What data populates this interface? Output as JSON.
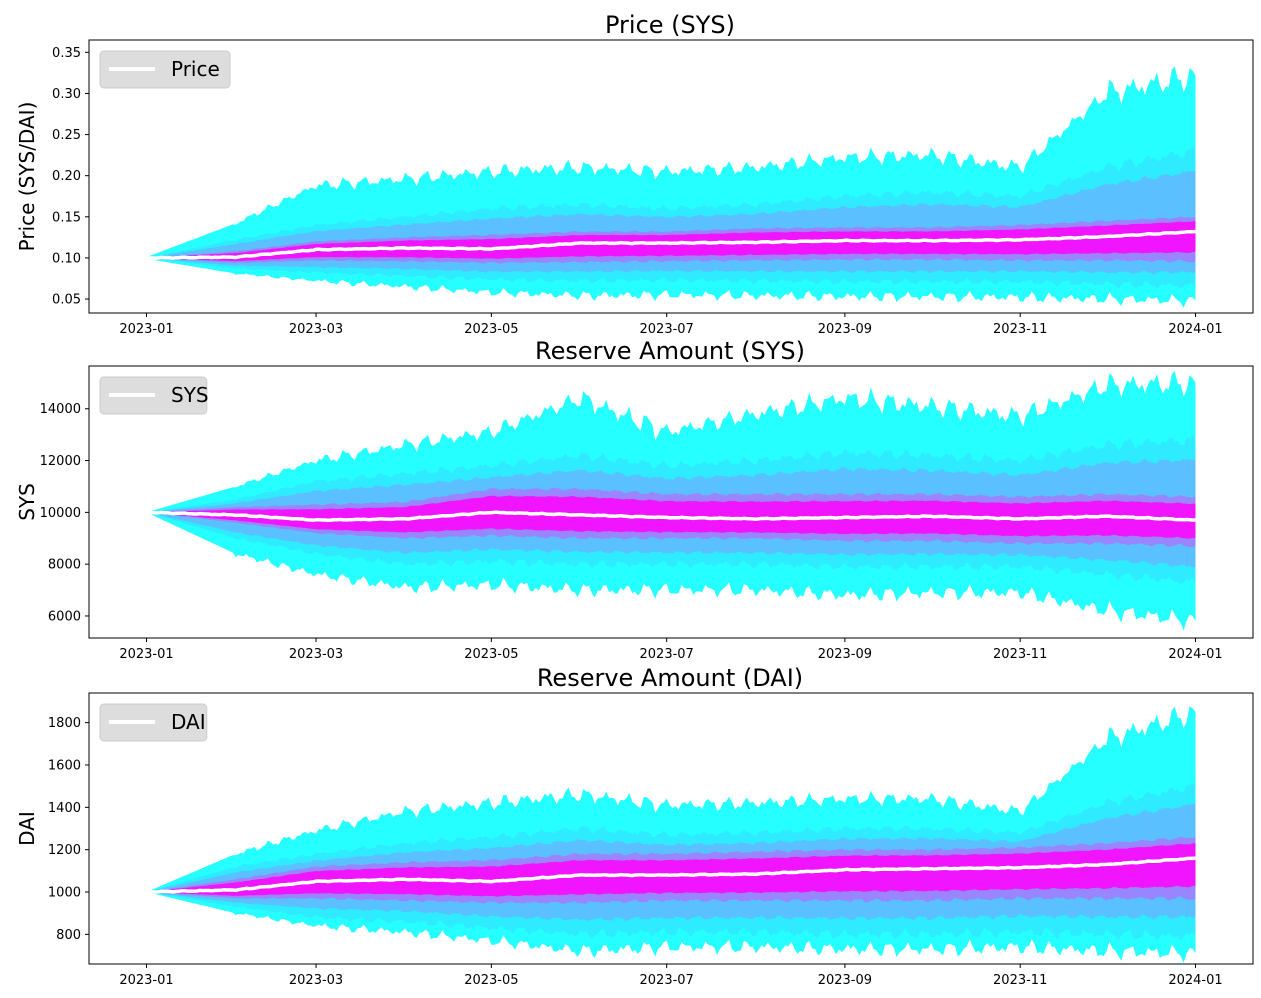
{
  "colors": {
    "outer_band": "#00ffff",
    "inner_band": "#ff00ff",
    "median_line": "#ffffff",
    "legend_bg": "#d9d9d9"
  },
  "chart_data": [
    {
      "type": "area",
      "title": "Price (SYS)",
      "xlabel": "",
      "ylabel": "Price (SYS/DAI)",
      "legend": {
        "labels": [
          "Price"
        ],
        "placement": "top-left"
      },
      "x_ticks": [
        "2023-01",
        "2023-03",
        "2023-05",
        "2023-07",
        "2023-09",
        "2023-11",
        "2024-01"
      ],
      "y_ticks": [
        "0.05",
        "0.10",
        "0.15",
        "0.20",
        "0.25",
        "0.30",
        "0.35"
      ],
      "xlim": [
        "2022-12-12",
        "2024-01-21"
      ],
      "ylim": [
        0.033,
        0.365
      ],
      "grid": false,
      "dates": [
        "2023-01-01",
        "2023-02-01",
        "2023-03-01",
        "2023-04-01",
        "2023-05-01",
        "2023-06-01",
        "2023-07-01",
        "2023-08-01",
        "2023-09-01",
        "2023-10-01",
        "2023-11-01",
        "2023-12-01",
        "2024-01-01"
      ],
      "series": [
        {
          "name": "Price",
          "values": [
            0.1,
            0.101,
            0.11,
            0.112,
            0.111,
            0.118,
            0.118,
            0.119,
            0.121,
            0.121,
            0.122,
            0.126,
            0.132
          ]
        }
      ],
      "bands": {
        "outer_upper": [
          0.101,
          0.142,
          0.188,
          0.196,
          0.205,
          0.21,
          0.205,
          0.21,
          0.222,
          0.225,
          0.21,
          0.3,
          0.322
        ],
        "outer_lower": [
          0.099,
          0.081,
          0.072,
          0.065,
          0.058,
          0.054,
          0.055,
          0.054,
          0.053,
          0.053,
          0.052,
          0.05,
          0.048
        ],
        "mid_upper": [
          0.1,
          0.122,
          0.14,
          0.15,
          0.16,
          0.165,
          0.16,
          0.165,
          0.175,
          0.18,
          0.175,
          0.21,
          0.23
        ],
        "mid_lower": [
          0.1,
          0.087,
          0.082,
          0.078,
          0.074,
          0.072,
          0.073,
          0.072,
          0.071,
          0.071,
          0.071,
          0.068,
          0.066
        ],
        "inner_upper": [
          0.1,
          0.108,
          0.12,
          0.125,
          0.128,
          0.132,
          0.132,
          0.136,
          0.137,
          0.137,
          0.14,
          0.145,
          0.15
        ],
        "inner_lower": [
          0.1,
          0.094,
          0.097,
          0.096,
          0.094,
          0.095,
          0.096,
          0.097,
          0.098,
          0.098,
          0.097,
          0.097,
          0.096
        ]
      }
    },
    {
      "type": "area",
      "title": "Reserve Amount (SYS)",
      "xlabel": "",
      "ylabel": "SYS",
      "legend": {
        "labels": [
          "SYS"
        ],
        "placement": "top-left"
      },
      "x_ticks": [
        "2023-01",
        "2023-03",
        "2023-05",
        "2023-07",
        "2023-09",
        "2023-11",
        "2024-01"
      ],
      "y_ticks": [
        "6000",
        "8000",
        "10000",
        "12000",
        "14000"
      ],
      "xlim": [
        "2022-12-12",
        "2024-01-21"
      ],
      "ylim": [
        5150,
        15650
      ],
      "grid": false,
      "dates": [
        "2023-01-01",
        "2023-02-01",
        "2023-03-01",
        "2023-04-01",
        "2023-05-01",
        "2023-06-01",
        "2023-07-01",
        "2023-08-01",
        "2023-09-01",
        "2023-10-01",
        "2023-11-01",
        "2023-12-01",
        "2024-01-01"
      ],
      "series": [
        {
          "name": "SYS",
          "values": [
            10000,
            9900,
            9700,
            9750,
            10000,
            9900,
            9800,
            9750,
            9800,
            9850,
            9750,
            9850,
            9700
          ]
        }
      ],
      "bands": {
        "outer_upper": [
          10000,
          11000,
          12000,
          12600,
          13100,
          14400,
          13100,
          13800,
          14400,
          14100,
          13700,
          14900,
          15000
        ],
        "outer_lower": [
          10000,
          8400,
          7600,
          7100,
          7200,
          7000,
          7000,
          7000,
          6800,
          6900,
          6900,
          6200,
          5800
        ],
        "mid_upper": [
          10000,
          10500,
          11200,
          11500,
          11800,
          12200,
          11800,
          12000,
          12300,
          12200,
          12000,
          12600,
          12800
        ],
        "mid_lower": [
          10000,
          9000,
          8400,
          8000,
          8100,
          8000,
          8000,
          8000,
          7900,
          7900,
          7900,
          7600,
          7300
        ],
        "inner_upper": [
          10000,
          10200,
          10300,
          10400,
          10900,
          10900,
          10700,
          10700,
          10700,
          10700,
          10600,
          10700,
          10600
        ],
        "inner_lower": [
          10000,
          9600,
          9200,
          9000,
          9100,
          9000,
          9000,
          9000,
          8900,
          8900,
          8800,
          8800,
          8700
        ]
      }
    },
    {
      "type": "area",
      "title": "Reserve Amount (DAI)",
      "xlabel": "",
      "ylabel": "DAI",
      "legend": {
        "labels": [
          "DAI"
        ],
        "placement": "top-left"
      },
      "x_ticks": [
        "2023-01",
        "2023-03",
        "2023-05",
        "2023-07",
        "2023-09",
        "2023-11",
        "2024-01"
      ],
      "y_ticks": [
        "800",
        "1000",
        "1200",
        "1400",
        "1600",
        "1800"
      ],
      "xlim": [
        "2022-12-12",
        "2024-01-21"
      ],
      "ylim": [
        660,
        1940
      ],
      "grid": false,
      "dates": [
        "2023-01-01",
        "2023-02-01",
        "2023-03-01",
        "2023-04-01",
        "2023-05-01",
        "2023-06-01",
        "2023-07-01",
        "2023-08-01",
        "2023-09-01",
        "2023-10-01",
        "2023-11-01",
        "2023-12-01",
        "2024-01-01"
      ],
      "series": [
        {
          "name": "DAI",
          "values": [
            1000,
            1010,
            1050,
            1060,
            1050,
            1080,
            1080,
            1085,
            1105,
            1110,
            1115,
            1130,
            1160
          ]
        }
      ],
      "bands": {
        "outer_upper": [
          1000,
          1180,
          1290,
          1380,
          1420,
          1460,
          1410,
          1420,
          1440,
          1440,
          1380,
          1720,
          1850
        ],
        "outer_lower": [
          1000,
          900,
          840,
          810,
          770,
          720,
          740,
          740,
          730,
          730,
          740,
          720,
          710
        ],
        "mid_upper": [
          1000,
          1120,
          1180,
          1230,
          1260,
          1300,
          1270,
          1280,
          1300,
          1300,
          1280,
          1420,
          1500
        ],
        "mid_lower": [
          1000,
          930,
          880,
          860,
          830,
          800,
          810,
          810,
          800,
          800,
          810,
          800,
          790
        ],
        "inner_upper": [
          1000,
          1060,
          1120,
          1140,
          1150,
          1180,
          1180,
          1190,
          1200,
          1200,
          1210,
          1230,
          1260
        ],
        "inner_lower": [
          1000,
          970,
          970,
          960,
          950,
          950,
          960,
          960,
          960,
          960,
          970,
          970,
          970
        ]
      }
    }
  ]
}
